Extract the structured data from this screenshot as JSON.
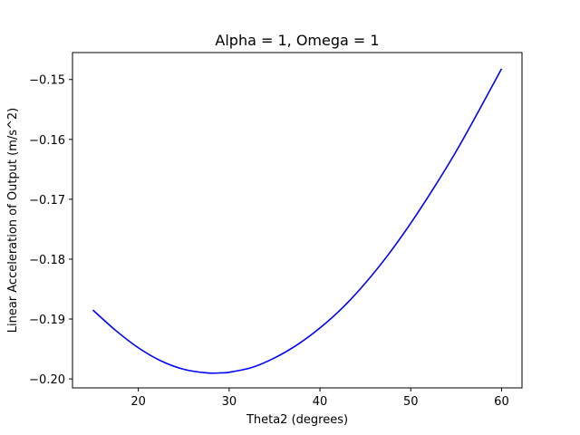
{
  "chart_data": {
    "type": "line",
    "title": "Alpha = 1, Omega = 1",
    "xlabel": "Theta2 (degrees)",
    "ylabel": "Linear Acceleration of Output (m/s^2)",
    "xlim": [
      12.75,
      62.25
    ],
    "ylim": [
      -0.2015,
      -0.1455
    ],
    "xticks": [
      20,
      30,
      40,
      50,
      60
    ],
    "yticks": [
      -0.2,
      -0.19,
      -0.18,
      -0.17,
      -0.16,
      -0.15
    ],
    "xtick_labels": [
      "20",
      "30",
      "40",
      "50",
      "60"
    ],
    "ytick_labels": [
      "−0.20",
      "−0.19",
      "−0.18",
      "−0.17",
      "−0.16",
      "−0.15"
    ],
    "grid": false,
    "legend": "none",
    "series": [
      {
        "color": "#0000ff",
        "x": [
          15,
          17.5,
          20,
          22.5,
          25,
          27.5,
          29,
          30,
          32.5,
          35,
          37.5,
          40,
          42.5,
          45,
          47.5,
          50,
          52.5,
          55,
          57.5,
          60
        ],
        "y": [
          -0.1885,
          -0.1919,
          -0.1948,
          -0.197,
          -0.1984,
          -0.199,
          -0.199,
          -0.1989,
          -0.1981,
          -0.1965,
          -0.1943,
          -0.1915,
          -0.1881,
          -0.184,
          -0.1793,
          -0.174,
          -0.1682,
          -0.162,
          -0.1552,
          -0.1482
        ]
      }
    ]
  }
}
